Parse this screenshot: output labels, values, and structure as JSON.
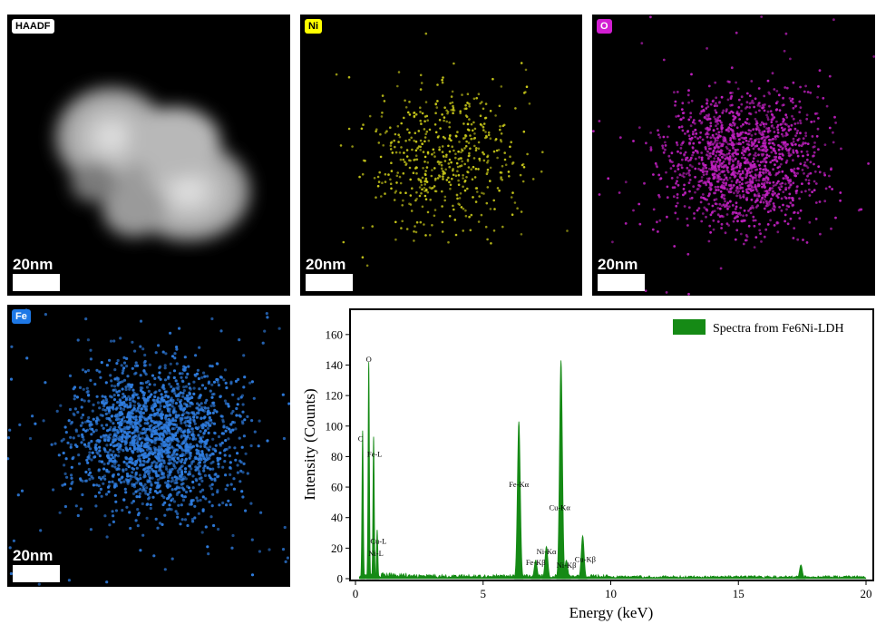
{
  "panels": [
    {
      "id": "haadf",
      "label": "HAADF",
      "label_bg": "#ffffff",
      "label_fg": "#000000",
      "scale": "20nm",
      "dot_color": null
    },
    {
      "id": "ni",
      "label": "Ni",
      "label_bg": "#ffff00",
      "label_fg": "#000000",
      "scale": "20nm",
      "dot_color": "#cccc1a"
    },
    {
      "id": "o",
      "label": "O",
      "label_bg": "#d21ed2",
      "label_fg": "#ffffff",
      "scale": "20nm",
      "dot_color": "#c020c0"
    },
    {
      "id": "fe",
      "label": "Fe",
      "label_bg": "#1e78e6",
      "label_fg": "#ffffff",
      "scale": "20nm",
      "dot_color": "#2f7de0"
    }
  ],
  "chart_data": {
    "type": "line",
    "xlabel": "Energy (keV)",
    "ylabel": "Intensity (Counts)",
    "xlim": [
      0,
      20
    ],
    "ylim": [
      0,
      170
    ],
    "xticks": [
      0,
      5,
      10,
      15,
      20
    ],
    "yticks": [
      0,
      20,
      40,
      60,
      80,
      100,
      120,
      140,
      160
    ],
    "series": [
      {
        "name": "Spectra from Fe6Ni-LDH",
        "color": "#158a15",
        "peaks": [
          {
            "x": 0.28,
            "y": 97
          },
          {
            "x": 0.52,
            "y": 142
          },
          {
            "x": 0.71,
            "y": 93
          },
          {
            "x": 0.85,
            "y": 32
          },
          {
            "x": 6.4,
            "y": 103
          },
          {
            "x": 7.06,
            "y": 12
          },
          {
            "x": 7.48,
            "y": 21
          },
          {
            "x": 8.05,
            "y": 143
          },
          {
            "x": 8.26,
            "y": 12
          },
          {
            "x": 8.9,
            "y": 28
          },
          {
            "x": 17.45,
            "y": 9
          }
        ]
      }
    ],
    "legend_position": "top-right",
    "annotations": [
      {
        "text": "O",
        "x": 0.52,
        "y": 142
      },
      {
        "text": "C",
        "x": 0.2,
        "y": 90
      },
      {
        "text": "Fe-L",
        "x": 0.75,
        "y": 80
      },
      {
        "text": "Cu-L",
        "x": 0.9,
        "y": 23
      },
      {
        "text": "Ni-L",
        "x": 0.8,
        "y": 15
      },
      {
        "text": "Fe-Kα",
        "x": 6.4,
        "y": 60
      },
      {
        "text": "Cu-Kα",
        "x": 8.0,
        "y": 45
      },
      {
        "text": "Ni-Kα",
        "x": 7.48,
        "y": 16
      },
      {
        "text": "Fe-Kβ",
        "x": 7.06,
        "y": 9
      },
      {
        "text": "Ni-Kβ",
        "x": 8.26,
        "y": 7
      },
      {
        "text": "Cu-Kβ",
        "x": 9.0,
        "y": 11
      }
    ]
  }
}
